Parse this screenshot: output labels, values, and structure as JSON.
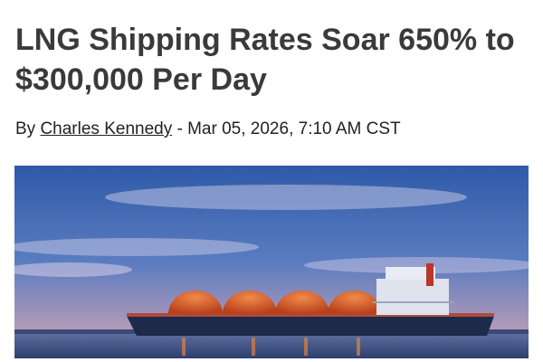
{
  "article": {
    "title": "LNG Shipping Rates Soar 650% to $300,000 Per Day",
    "byline_prefix": "By ",
    "author": "Charles Kennedy",
    "byline_separator": " - ",
    "date": "Mar 05, 2026, 7:10 AM CST"
  },
  "colors": {
    "title": "#3a3a3a",
    "sky": "#3f66b0",
    "tanks": "#d85a2a",
    "hull": "#1d2a4a"
  }
}
